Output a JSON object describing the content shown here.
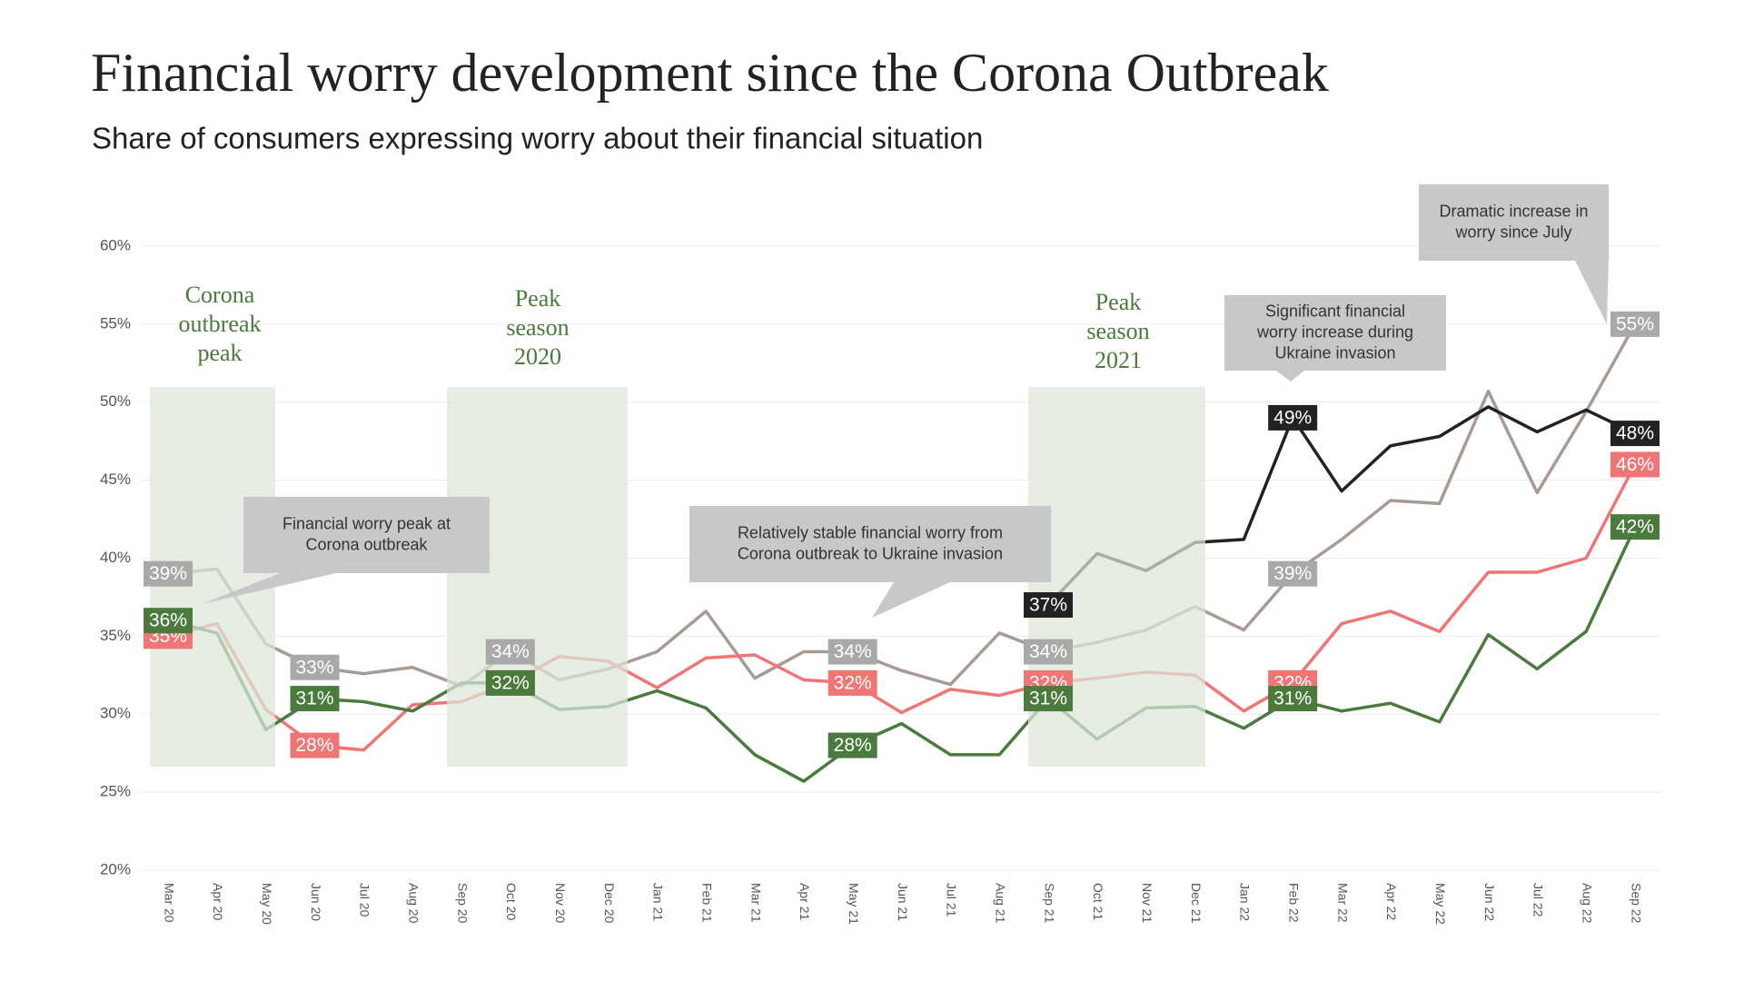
{
  "chart_data": {
    "type": "line",
    "title": "Financial worry development since the Corona Outbreak",
    "subtitle": "Share of consumers expressing worry about their financial situation",
    "categories": [
      "Mar 20",
      "Apr 20",
      "May 20",
      "Jun 20",
      "Jul 20",
      "Aug 20",
      "Sep 20",
      "Oct 20",
      "Nov 20",
      "Dec 20",
      "Jan 21",
      "Feb 21",
      "Mar 21",
      "Apr 21",
      "May 21",
      "Jun 21",
      "Jul 21",
      "Aug 21",
      "Sep 21",
      "Oct 21",
      "Nov 21",
      "Dec 21",
      "Jan 22",
      "Feb 22",
      "Mar 22",
      "Apr 22",
      "May 22",
      "Jun 22",
      "Jul 22",
      "Aug 22",
      "Sep 22"
    ],
    "ylim": [
      20,
      60
    ],
    "yticks": [
      {
        "value": 20,
        "label": "20%"
      },
      {
        "value": 25,
        "label": "25%"
      },
      {
        "value": 30,
        "label": "30%"
      },
      {
        "value": 35,
        "label": "35%"
      },
      {
        "value": 40,
        "label": "40%"
      },
      {
        "value": 45,
        "label": "45%"
      },
      {
        "value": 50,
        "label": "50%"
      },
      {
        "value": 55,
        "label": "55%"
      },
      {
        "value": 60,
        "label": "60%"
      }
    ],
    "grid": true,
    "series": [
      {
        "color": "#a89a94",
        "label_color": "#aaa9a8",
        "values": [
          39,
          39.3,
          34.5,
          33,
          32.6,
          33,
          31.8,
          34,
          32.2,
          32.9,
          34,
          36.6,
          32.3,
          34,
          34,
          32.8,
          31.9,
          35.2,
          34,
          34.6,
          35.4,
          36.9,
          35.4,
          39,
          41.2,
          43.7,
          43.5,
          50.7,
          44.2,
          49.4,
          55
        ],
        "value_labels": [
          "39%",
          null,
          null,
          "33%",
          null,
          null,
          null,
          "34%",
          null,
          null,
          null,
          null,
          null,
          null,
          "34%",
          null,
          null,
          null,
          "34%",
          null,
          null,
          null,
          null,
          "39%",
          null,
          null,
          null,
          null,
          null,
          null,
          "55%"
        ]
      },
      {
        "color": "#f07575",
        "label_color": "#f07575",
        "values": [
          35,
          35.8,
          30.3,
          28,
          27.7,
          30.6,
          30.8,
          32,
          33.7,
          33.4,
          31.7,
          33.6,
          33.8,
          32.2,
          32,
          30.1,
          31.6,
          31.2,
          32,
          32.3,
          32.7,
          32.5,
          30.2,
          32,
          35.8,
          36.6,
          35.3,
          39.1,
          39.1,
          40,
          46
        ],
        "value_labels": [
          "35%",
          null,
          null,
          "28%",
          null,
          null,
          null,
          "32%",
          null,
          null,
          null,
          null,
          null,
          null,
          "32%",
          null,
          null,
          null,
          "32%",
          null,
          null,
          null,
          null,
          "32%",
          null,
          null,
          null,
          null,
          null,
          null,
          "46%"
        ]
      },
      {
        "color": "#4a7a3c",
        "label_color": "#4a7a3c",
        "values": [
          36,
          35.2,
          29,
          31,
          30.8,
          30.2,
          32,
          32,
          30.3,
          30.5,
          31.5,
          30.4,
          27.4,
          25.7,
          28,
          29.4,
          27.4,
          27.4,
          31,
          28.4,
          30.4,
          30.5,
          29.1,
          31,
          30.2,
          30.7,
          29.5,
          35.1,
          32.9,
          35.3,
          42
        ],
        "value_labels": [
          "36%",
          null,
          null,
          "31%",
          null,
          null,
          null,
          "32%",
          null,
          null,
          null,
          null,
          null,
          null,
          "28%",
          null,
          null,
          null,
          "31%",
          null,
          null,
          null,
          null,
          "31%",
          null,
          null,
          null,
          null,
          null,
          null,
          "42%"
        ]
      },
      {
        "color": "#222222",
        "label_color": "#222222",
        "values": [
          null,
          null,
          null,
          null,
          null,
          null,
          null,
          null,
          null,
          null,
          null,
          null,
          null,
          null,
          null,
          null,
          null,
          null,
          37,
          40.3,
          39.2,
          41,
          41.2,
          49,
          44.3,
          47.2,
          47.8,
          49.7,
          48.1,
          49.5,
          48
        ],
        "value_labels": [
          null,
          null,
          null,
          null,
          null,
          null,
          null,
          null,
          null,
          null,
          null,
          null,
          null,
          null,
          null,
          null,
          null,
          null,
          "37%",
          null,
          null,
          null,
          null,
          "49%",
          null,
          null,
          null,
          null,
          null,
          null,
          "48%"
        ]
      }
    ],
    "regions": [
      {
        "lines": [
          "Corona",
          "outbreak",
          "peak"
        ]
      },
      {
        "lines": [
          "Peak",
          "season",
          "2020"
        ]
      },
      {
        "lines": [
          "Peak",
          "season",
          "2021"
        ]
      }
    ],
    "callouts": [
      {
        "lines": [
          "Financial worry peak at",
          "Corona outbreak"
        ]
      },
      {
        "lines": [
          "Relatively stable financial worry from",
          "Corona outbreak to Ukraine invasion"
        ]
      },
      {
        "lines": [
          "Significant financial",
          "worry increase during",
          "Ukraine invasion"
        ]
      },
      {
        "lines": [
          "Dramatic increase in",
          "worry since July"
        ]
      }
    ]
  }
}
